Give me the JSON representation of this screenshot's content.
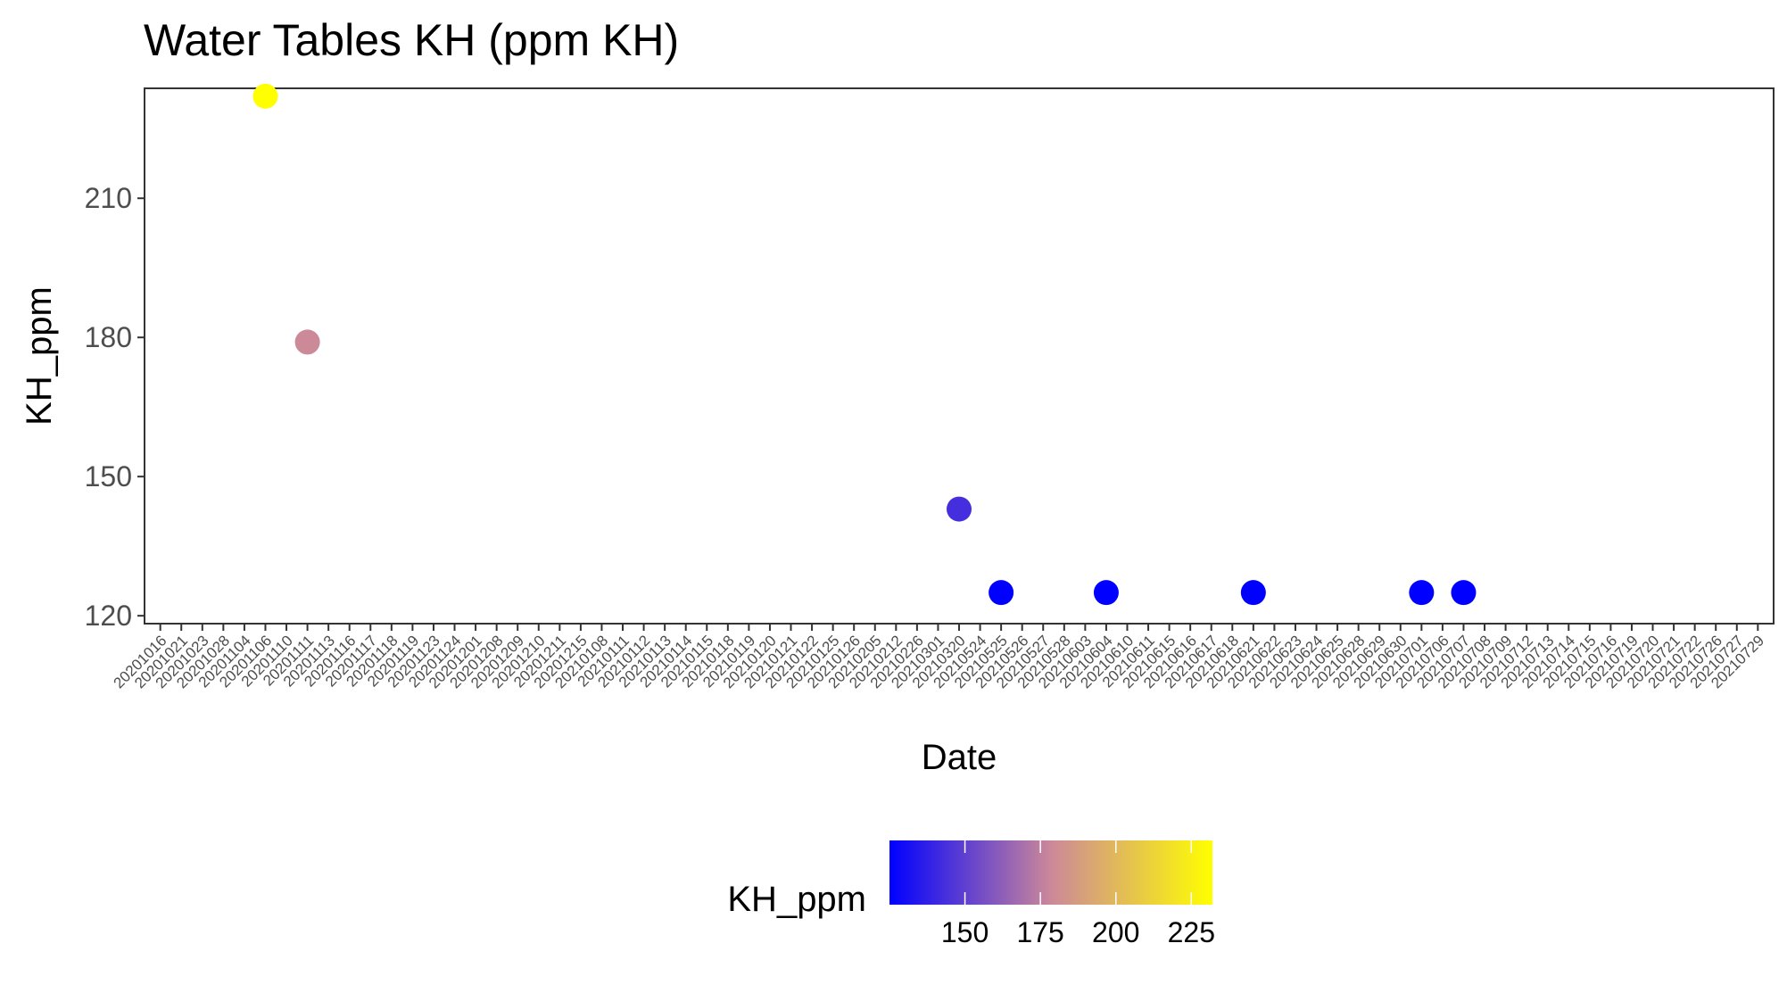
{
  "chart_data": {
    "type": "scatter",
    "title": "Water Tables KH (ppm KH)",
    "xlabel": "Date",
    "ylabel": "KH_ppm",
    "x_is_categorical": true,
    "categories": [
      "20201016",
      "20201021",
      "20201023",
      "20201028",
      "20201104",
      "20201106",
      "20201110",
      "20201111",
      "20201113",
      "20201116",
      "20201117",
      "20201118",
      "20201119",
      "20201123",
      "20201124",
      "20201201",
      "20201208",
      "20201209",
      "20201210",
      "20201211",
      "20201215",
      "20210108",
      "20210111",
      "20210112",
      "20210113",
      "20210114",
      "20210115",
      "20210118",
      "20210119",
      "20210120",
      "20210121",
      "20210122",
      "20210125",
      "20210126",
      "20210205",
      "20210212",
      "20210226",
      "20210301",
      "20210320",
      "20210524",
      "20210525",
      "20210526",
      "20210527",
      "20210528",
      "20210603",
      "20210604",
      "20210610",
      "20210611",
      "20210615",
      "20210616",
      "20210617",
      "20210618",
      "20210621",
      "20210622",
      "20210623",
      "20210624",
      "20210625",
      "20210628",
      "20210629",
      "20210630",
      "20210701",
      "20210706",
      "20210707",
      "20210708",
      "20210709",
      "20210712",
      "20210713",
      "20210714",
      "20210715",
      "20210716",
      "20210719",
      "20210720",
      "20210721",
      "20210722",
      "20210726",
      "20210727",
      "20210729"
    ],
    "points": [
      {
        "x": "20201106",
        "y": 232
      },
      {
        "x": "20201111",
        "y": 179
      },
      {
        "x": "20210320",
        "y": 143
      },
      {
        "x": "20210525",
        "y": 125
      },
      {
        "x": "20210604",
        "y": 125
      },
      {
        "x": "20210621",
        "y": 125
      },
      {
        "x": "20210701",
        "y": 125
      },
      {
        "x": "20210707",
        "y": 125
      }
    ],
    "yticks": [
      120,
      150,
      180,
      210
    ],
    "ylim": [
      118.3,
      233.7
    ],
    "color_scale": {
      "title": "KH_ppm",
      "low_color": "#0000FF",
      "mid_color": "#CC8899",
      "high_color": "#FFFF00",
      "domain": [
        125,
        232
      ],
      "ticks": [
        150,
        175,
        200,
        225
      ]
    },
    "legend_position": "bottom",
    "grid": false
  }
}
